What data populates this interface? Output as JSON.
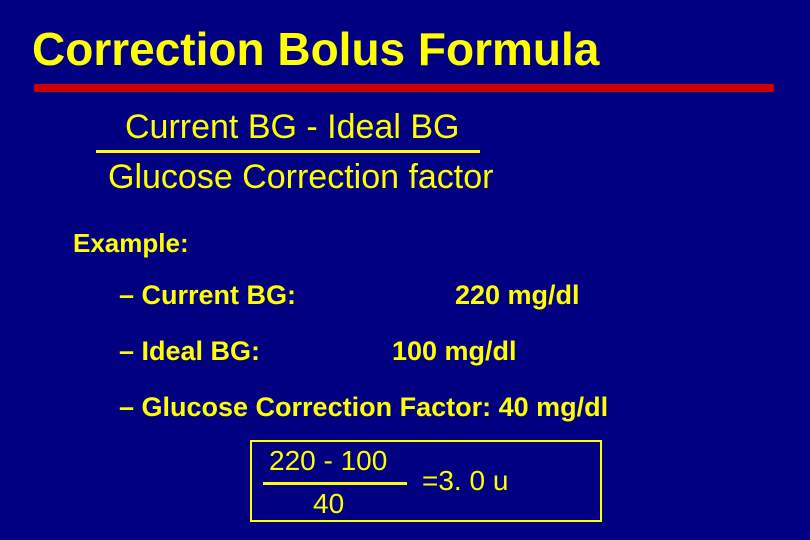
{
  "colors": {
    "background": "#000080",
    "text": "#ffff00",
    "rule": "#cc0000"
  },
  "title": "Correction Bolus Formula",
  "formula": {
    "numerator": "Current BG - Ideal BG",
    "denominator": "Glucose Correction factor"
  },
  "example_label": "Example:",
  "rows": [
    {
      "label": "– Current BG:",
      "value": "220 mg/dl"
    },
    {
      "label": "– Ideal BG:",
      "value": "100 mg/dl"
    },
    {
      "full": "– Glucose Correction  Factor:   40 mg/dl"
    }
  ],
  "calc": {
    "numerator": "220 - 100",
    "denominator": "40",
    "result": "=3. 0 u"
  }
}
